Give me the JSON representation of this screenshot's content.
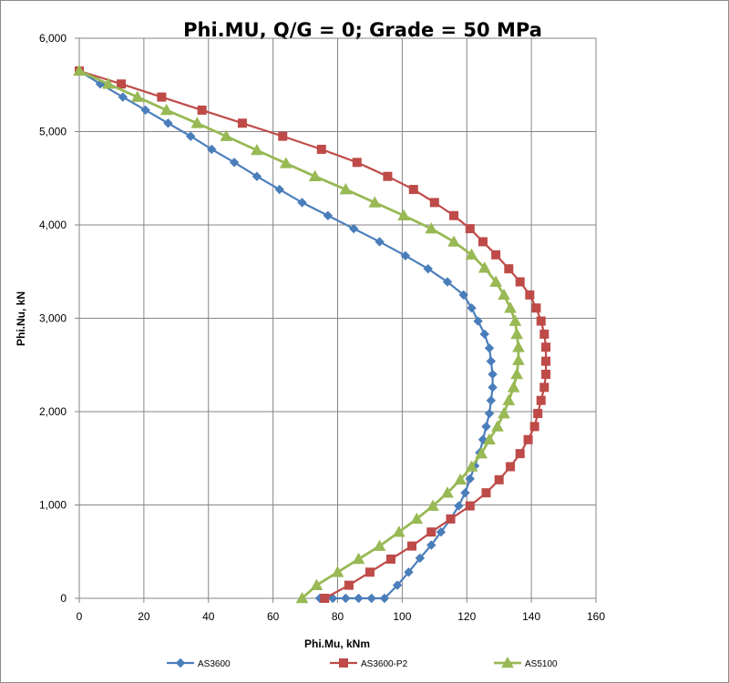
{
  "chart_data": {
    "type": "line",
    "title": "Phi.MU, Q/G = 0; Grade = 50 MPa",
    "xlabel": "Phi.Mu, kNm",
    "ylabel": "Phi.Nu, kN",
    "xlim": [
      0,
      160
    ],
    "ylim": [
      0,
      6000
    ],
    "x_ticks": [
      0,
      20,
      40,
      60,
      80,
      100,
      120,
      140,
      160
    ],
    "x_tick_labels": [
      "0",
      "20",
      "40",
      "60",
      "80",
      "100",
      "120",
      "140",
      "160"
    ],
    "y_ticks": [
      0,
      1000,
      2000,
      3000,
      4000,
      5000,
      6000
    ],
    "y_tick_labels": [
      "0",
      "1,000",
      "2,000",
      "3,000",
      "4,000",
      "5,000",
      "6,000"
    ],
    "grid": true,
    "legend_position": "bottom",
    "series": [
      {
        "name": "AS3600",
        "color": "#4a7ebb",
        "marker": "diamond",
        "x": [
          0,
          6.5,
          13.5,
          20.5,
          27.5,
          34.5,
          41,
          48,
          55,
          62,
          69,
          77,
          85,
          93,
          101,
          108,
          114,
          119,
          121.5,
          123.5,
          125.5,
          127,
          127.5,
          128,
          128,
          127.5,
          127,
          126,
          125,
          124,
          122.5,
          121,
          119.5,
          117.5,
          115,
          112,
          109,
          105.5,
          102,
          98.5,
          94.5,
          90.5,
          86.5,
          82.5,
          78.5,
          74.5
        ],
        "y": [
          5650,
          5510,
          5370,
          5230,
          5090,
          4950,
          4810,
          4670,
          4520,
          4380,
          4240,
          4100,
          3960,
          3820,
          3670,
          3530,
          3390,
          3250,
          3110,
          2970,
          2830,
          2680,
          2540,
          2400,
          2260,
          2120,
          1980,
          1840,
          1700,
          1560,
          1420,
          1280,
          1130,
          990,
          850,
          710,
          570,
          430,
          280,
          140,
          0,
          0,
          0,
          0,
          0,
          0
        ]
      },
      {
        "name": "AS3600-P2",
        "color": "#be4b48",
        "marker": "square",
        "x": [
          0,
          13,
          25.5,
          38,
          50.5,
          63,
          75,
          86,
          95.5,
          103.5,
          110,
          116,
          121,
          125,
          129,
          133,
          136.5,
          139.5,
          141.5,
          143,
          144,
          144.5,
          144.5,
          144.5,
          144,
          143,
          142,
          141,
          139,
          136.5,
          133.5,
          130,
          126,
          121,
          115,
          109,
          103,
          96.5,
          90,
          83.5,
          76
        ],
        "y": [
          5650,
          5510,
          5370,
          5230,
          5090,
          4950,
          4810,
          4670,
          4520,
          4380,
          4240,
          4100,
          3960,
          3820,
          3680,
          3530,
          3390,
          3250,
          3110,
          2970,
          2830,
          2690,
          2540,
          2400,
          2260,
          2120,
          1980,
          1840,
          1700,
          1550,
          1410,
          1270,
          1130,
          990,
          850,
          710,
          560,
          420,
          280,
          140,
          0
        ]
      },
      {
        "name": "AS5100",
        "color": "#98b954",
        "marker": "triangle",
        "x": [
          0,
          9,
          18,
          27,
          36.5,
          45.5,
          55,
          64,
          73,
          82.5,
          91.5,
          100.5,
          109,
          116,
          121.5,
          125.5,
          129,
          131.5,
          133.5,
          135,
          135.5,
          136,
          136,
          135.5,
          134.5,
          133,
          131.5,
          129.5,
          127,
          124.5,
          121.5,
          118,
          114,
          109.5,
          104.5,
          99,
          93,
          86.5,
          80,
          73.5,
          69
        ],
        "y": [
          5650,
          5510,
          5370,
          5230,
          5090,
          4950,
          4800,
          4660,
          4520,
          4380,
          4240,
          4100,
          3960,
          3820,
          3680,
          3540,
          3390,
          3250,
          3110,
          2970,
          2830,
          2690,
          2550,
          2400,
          2260,
          2120,
          1980,
          1840,
          1700,
          1550,
          1410,
          1270,
          1130,
          990,
          850,
          710,
          560,
          420,
          280,
          140,
          0
        ]
      }
    ]
  }
}
